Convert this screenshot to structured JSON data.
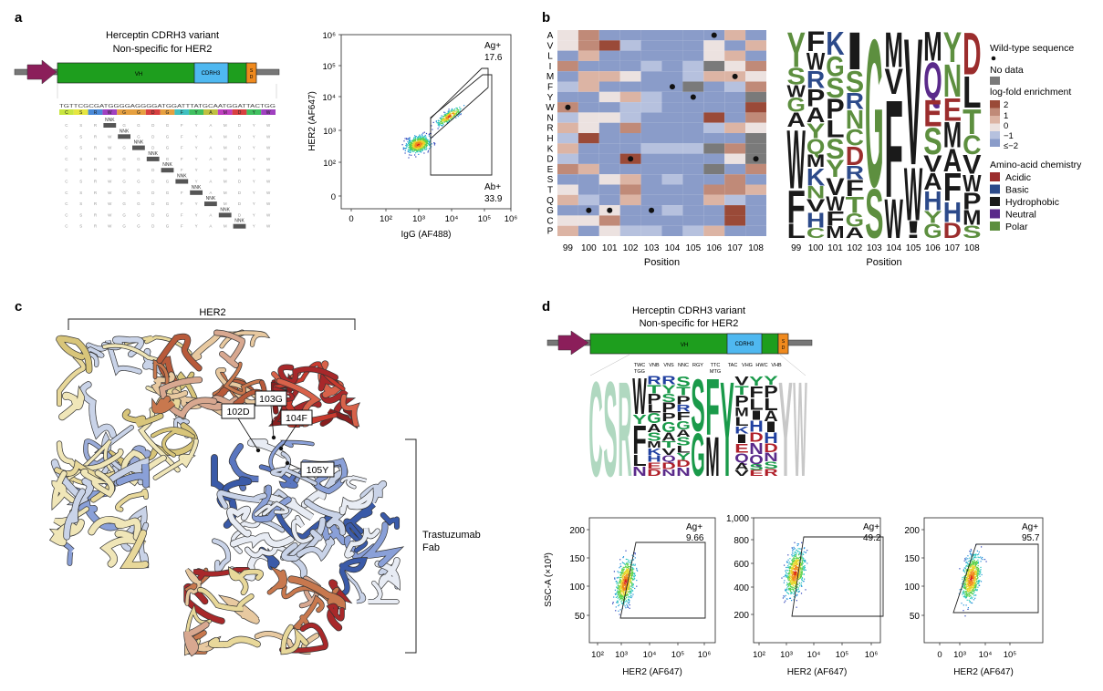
{
  "panels": {
    "a": "a",
    "b": "b",
    "c": "c",
    "d": "d"
  },
  "panel_a": {
    "title1": "Herceptin CDRH3 variant",
    "title2": "Non-specific for HER2",
    "vh_label": "VH",
    "cdrh3_label": "CDRH3",
    "sd_label": "S\nD",
    "wt_seq": "TGTTCGCGATGGGGAGGGGATGGATTTATGCAATGGATTACTGG",
    "aa_row": [
      "C",
      "S",
      "R",
      "W",
      "G",
      "G",
      "D",
      "G",
      "F",
      "Y",
      "A",
      "M",
      "D",
      "Y",
      "W"
    ],
    "nnk": "NNK",
    "flow": {
      "xlabel": "IgG (AF488)",
      "ylabel": "HER2 (AF647)",
      "gate1": "Ag+",
      "gate1_val": "17.6",
      "gate2": "Ab+",
      "gate2_val": "33.9",
      "xticks": [
        "0",
        "10²",
        "10³",
        "10⁴",
        "10⁵",
        "10⁶"
      ],
      "yticks": [
        "0",
        "10²",
        "10³",
        "10⁴",
        "10⁵",
        "10⁶"
      ]
    }
  },
  "panel_b": {
    "aa_rows": [
      "A",
      "V",
      "L",
      "I",
      "M",
      "F",
      "Y",
      "W",
      "N",
      "R",
      "H",
      "K",
      "D",
      "E",
      "S",
      "T",
      "Q",
      "G",
      "C",
      "P"
    ],
    "positions": [
      "99",
      "100",
      "101",
      "102",
      "103",
      "104",
      "105",
      "106",
      "107",
      "108"
    ],
    "xlabel": "Position",
    "legend": {
      "wt": "Wild-type sequence",
      "nodata": "No data",
      "lfe": "log-fold enrichment",
      "ticks": [
        "2",
        "1",
        "0",
        "−1",
        "≤−2"
      ],
      "chem_title": "Amino-acid chemistry",
      "chem": [
        "Acidic",
        "Basic",
        "Hydrophobic",
        "Neutral",
        "Polar"
      ],
      "chem_colors": [
        "#9b2d2d",
        "#2c4a8a",
        "#1a1a1a",
        "#5a2a8a",
        "#5d8f3f"
      ]
    }
  },
  "panel_c": {
    "her2": "HER2",
    "labels": [
      "102D",
      "103G",
      "104F",
      "105Y"
    ],
    "fab1": "Trastuzumab",
    "fab2": "Fab"
  },
  "panel_d": {
    "title1": "Herceptin CDRH3 variant",
    "title2": "Non-specific for HER2",
    "vh_label": "VH",
    "cdrh3_label": "CDRH3",
    "sd_label": "S\nD",
    "codons": [
      "TWC\nTGG",
      "VNB",
      "VNS",
      "NNC",
      "RGY",
      "TTC\nMTG",
      "TAC",
      "VHG",
      "HWC",
      "VHB"
    ],
    "ylabel": "SSC-A (×10³)",
    "xlabel": "HER2 (AF647)",
    "plots": [
      {
        "gate": "Ag+",
        "val": "9.66",
        "yticks": [
          "50",
          "100",
          "150",
          "200"
        ],
        "xticks": [
          "10²",
          "10³",
          "10⁴",
          "10⁵",
          "10⁶"
        ]
      },
      {
        "gate": "Ag+",
        "val": "49.2",
        "yticks": [
          "200",
          "400",
          "600",
          "800",
          "1,000"
        ],
        "xticks": [
          "10²",
          "10³",
          "10⁴",
          "10⁵",
          "10⁶"
        ]
      },
      {
        "gate": "Ag+",
        "val": "95.7",
        "yticks": [
          "50",
          "100",
          "150",
          "200"
        ],
        "xticks": [
          "0",
          "10³",
          "10⁴",
          "10⁵"
        ]
      }
    ]
  },
  "chart_data": [
    {
      "type": "scatter",
      "xlabel": "IgG (AF488)",
      "ylabel": "HER2 (AF647)",
      "gates": [
        {
          "name": "Ag+",
          "value": 17.6
        },
        {
          "name": "Ab+",
          "value": 33.9
        }
      ]
    },
    {
      "type": "heatmap",
      "xlabel": "Position",
      "x": [
        "99",
        "100",
        "101",
        "102",
        "103",
        "104",
        "105",
        "106",
        "107",
        "108"
      ],
      "y": [
        "A",
        "V",
        "L",
        "I",
        "M",
        "F",
        "Y",
        "W",
        "N",
        "R",
        "H",
        "K",
        "D",
        "E",
        "S",
        "T",
        "Q",
        "G",
        "C",
        "P"
      ],
      "wild_type": [
        [
          "99",
          "W"
        ],
        [
          "100",
          "G"
        ],
        [
          "101",
          "G"
        ],
        [
          "102",
          "D"
        ],
        [
          "103",
          "G"
        ],
        [
          "104",
          "F"
        ],
        [
          "105",
          "Y"
        ],
        [
          "106",
          "A"
        ],
        [
          "107",
          "M"
        ],
        [
          "108",
          "D"
        ]
      ]
    },
    {
      "type": "scatter",
      "xlabel": "HER2 (AF647)",
      "ylabel": "SSC-A (×10³)",
      "gates": [
        {
          "name": "Ag+",
          "value": 9.66
        },
        {
          "name": "Ag+",
          "value": 49.2
        },
        {
          "name": "Ag+",
          "value": 95.7
        }
      ]
    }
  ]
}
